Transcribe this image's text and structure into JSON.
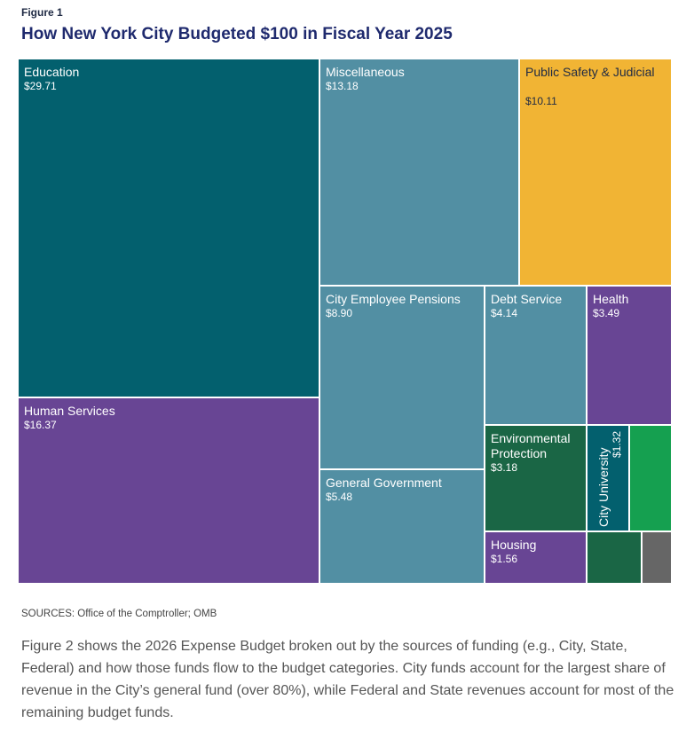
{
  "figure_label": "Figure 1",
  "title": "How New York City Budgeted $100 in Fiscal Year 2025",
  "chart_data": {
    "type": "treemap",
    "total": 100,
    "items": [
      {
        "name": "Education",
        "label": "Education",
        "value": 29.71,
        "value_label": "$29.71",
        "color": "#03606e"
      },
      {
        "name": "Human Services",
        "label": "Human Services",
        "value": 16.37,
        "value_label": "$16.37",
        "color": "#684594"
      },
      {
        "name": "Miscellaneous",
        "label": "Miscellaneous",
        "value": 13.18,
        "value_label": "$13.18",
        "color": "#528fa3"
      },
      {
        "name": "Public Safety & Judicial",
        "label": "Public Safety & Judicial",
        "value": 10.11,
        "value_label": "$10.11",
        "color": "#f1b434"
      },
      {
        "name": "City Employee Pensions",
        "label": "City Employee Pensions",
        "value": 8.9,
        "value_label": "$8.90",
        "color": "#528fa3"
      },
      {
        "name": "General Government",
        "label": "General Government",
        "value": 5.48,
        "value_label": "$5.48",
        "color": "#528fa3"
      },
      {
        "name": "Debt Service",
        "label": "Debt Service",
        "value": 4.14,
        "value_label": "$4.14",
        "color": "#528fa3"
      },
      {
        "name": "Health",
        "label": "Health",
        "value": 3.49,
        "value_label": "$3.49",
        "color": "#684594"
      },
      {
        "name": "Environmental Protection",
        "label": "Environmental Protection",
        "value": 3.18,
        "value_label": "$3.18",
        "color": "#1a6645"
      },
      {
        "name": "City University",
        "label": "City University",
        "value": 1.32,
        "value_label": "$1.32",
        "color": "#03606e"
      },
      {
        "name": "Housing",
        "label": "Housing",
        "value": 1.56,
        "value_label": "$1.56",
        "color": "#684594"
      },
      {
        "name": "",
        "label": "",
        "value": null,
        "value_label": "",
        "color": "#15a050"
      },
      {
        "name": "",
        "label": "",
        "value": null,
        "value_label": "",
        "color": "#1a6645"
      },
      {
        "name": "",
        "label": "",
        "value": null,
        "value_label": "",
        "color": "#666666"
      }
    ]
  },
  "sources": "SOURCES: Office of the Comptroller; OMB",
  "paragraph": "Figure 2 shows the 2026 Expense Budget broken out by the sources of funding (e.g., City, State, Federal) and how those funds flow to the budget categories. City funds account for the largest share of revenue in the City’s general fund (over 80%), while Federal and State revenues account for most of the remaining budget funds."
}
